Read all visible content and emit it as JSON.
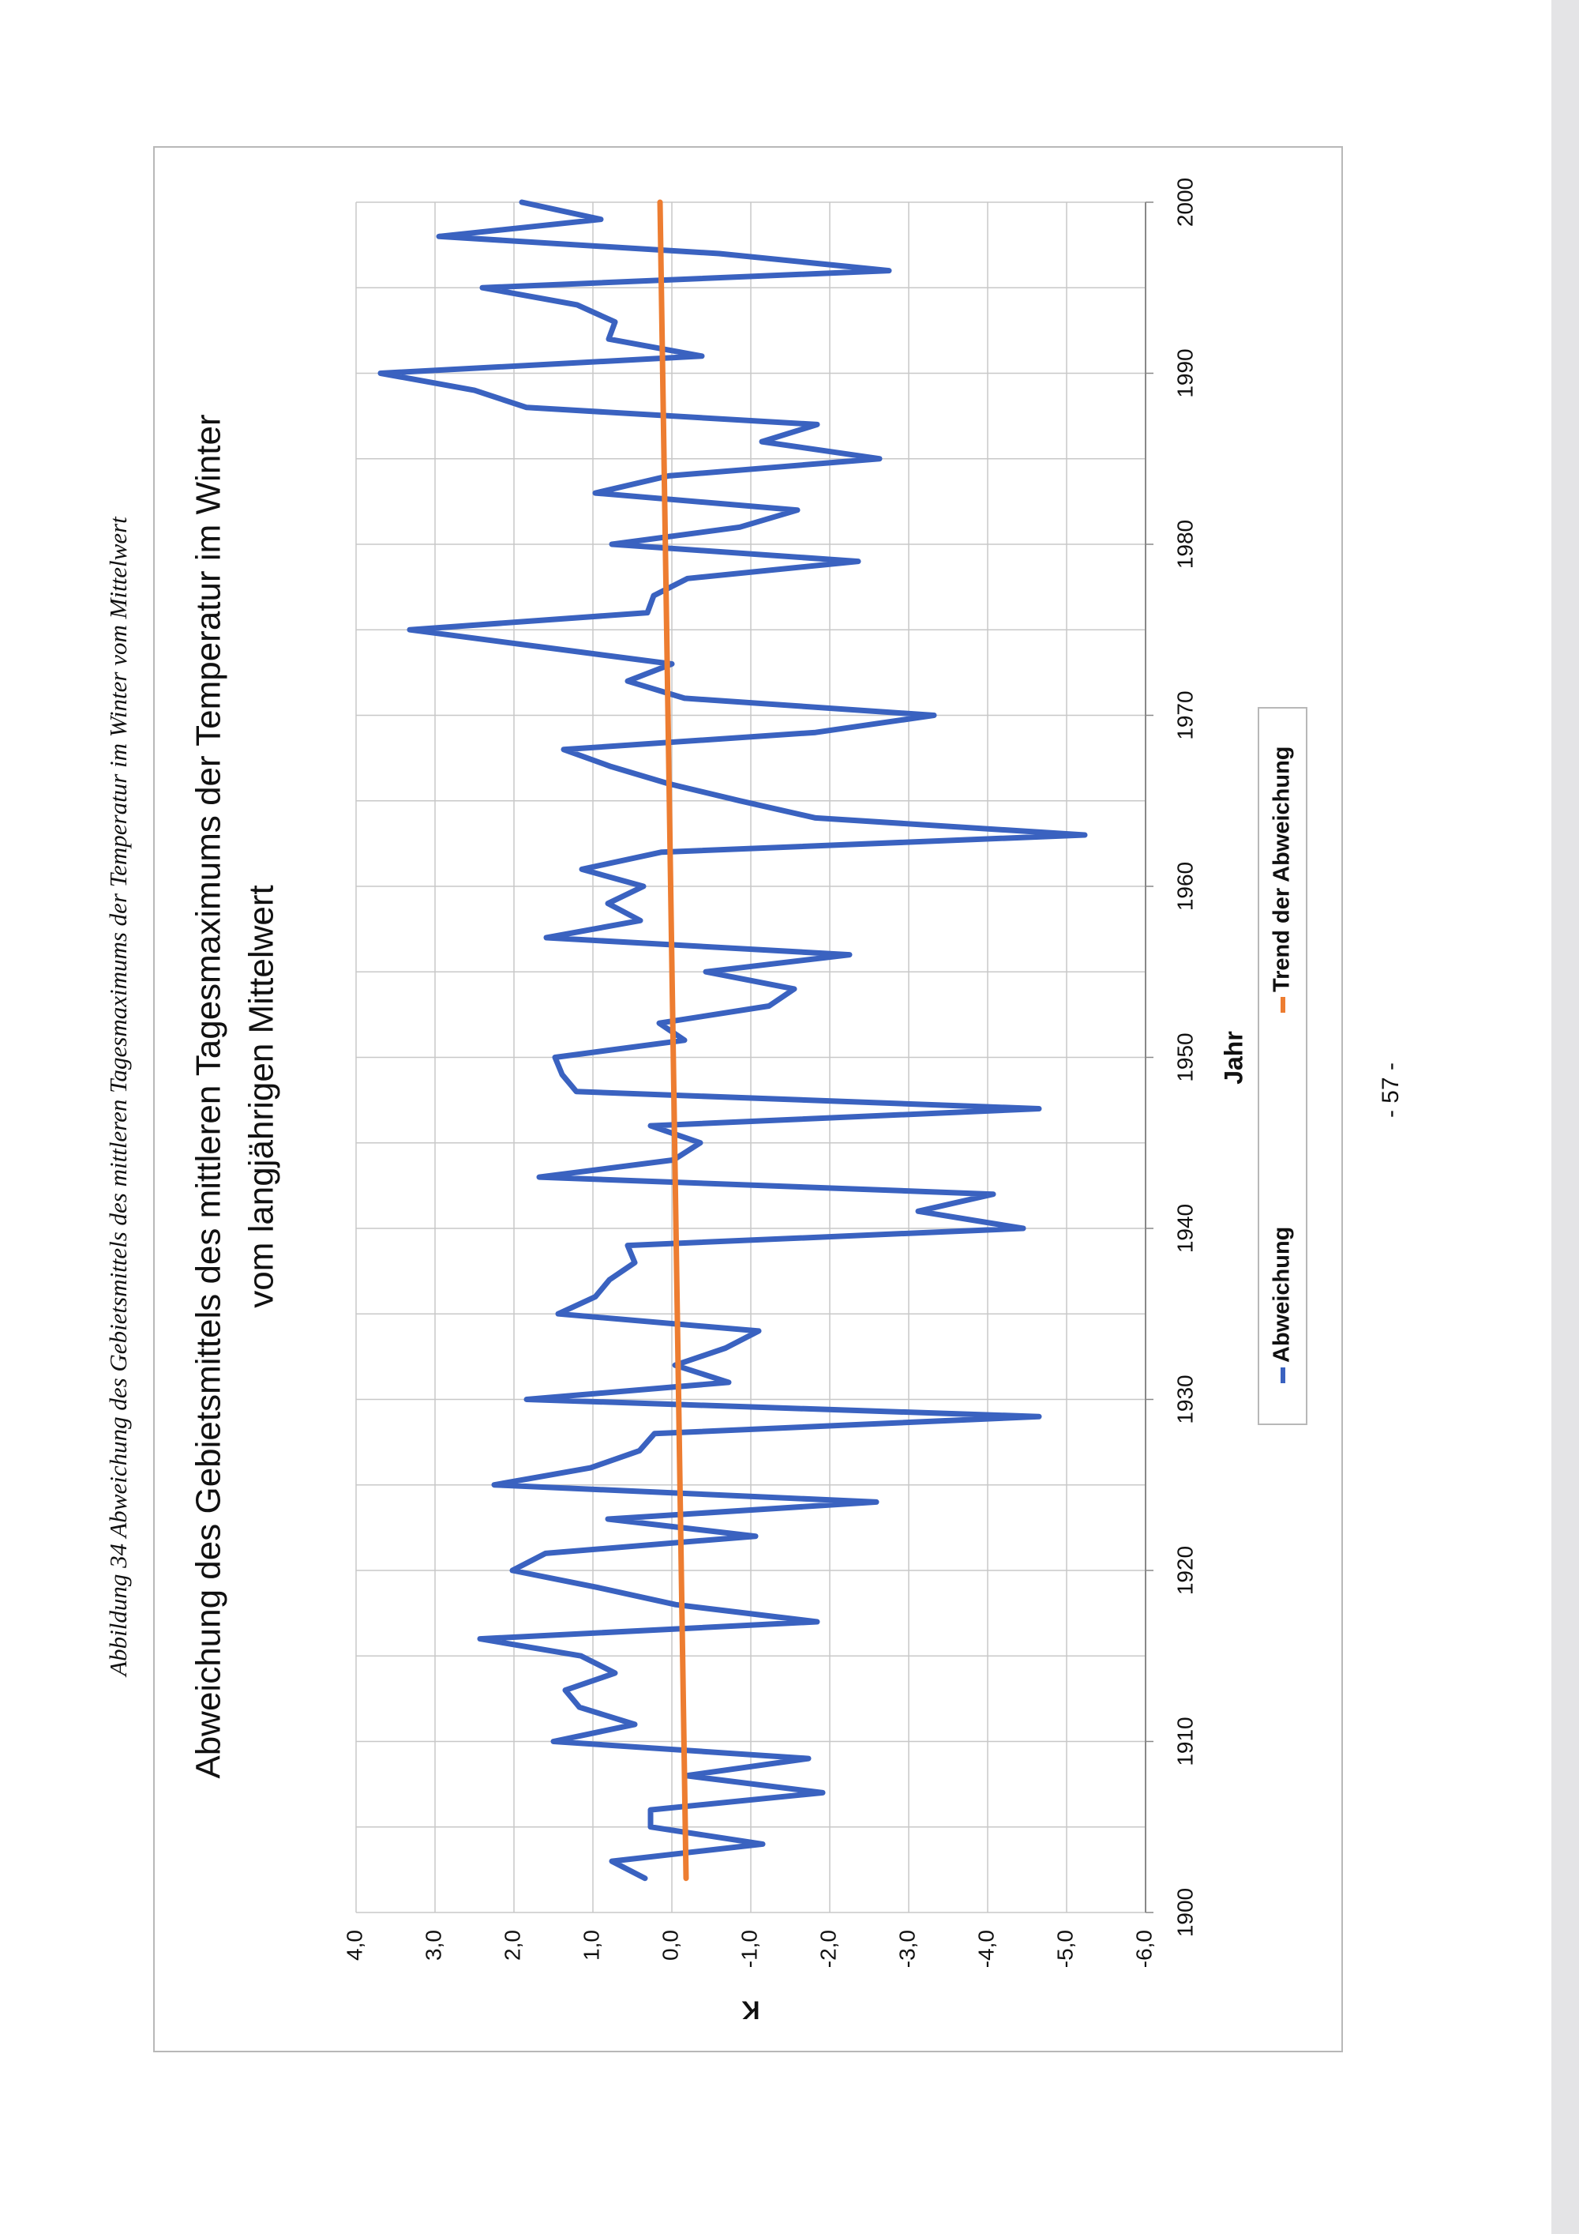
{
  "caption": "Abbildung 34 Abweichung des Gebietsmittels des mittleren Tagesmaximums der Temperatur im Winter vom Mittelwert",
  "page_number": "- 57 -",
  "chart_data": {
    "type": "line",
    "title": [
      "Abweichung des Gebietsmittels des mittleren Tagesmaximums der Temperatur im Winter",
      "vom langjährigen Mittelwert"
    ],
    "xlabel": "Jahr",
    "ylabel": "K",
    "xlim": [
      1900,
      2000
    ],
    "xticks": [
      1900,
      1910,
      1920,
      1930,
      1940,
      1950,
      1960,
      1970,
      1980,
      1990,
      2000
    ],
    "ylim": [
      -6,
      4
    ],
    "yticks": [
      {
        "value": 4,
        "label": "4,0"
      },
      {
        "value": 3,
        "label": "3,0"
      },
      {
        "value": 2,
        "label": "2,0"
      },
      {
        "value": 1,
        "label": "1,0"
      },
      {
        "value": 0,
        "label": "0,0"
      },
      {
        "value": -1,
        "label": "-1,0"
      },
      {
        "value": -2,
        "label": "-2,0"
      },
      {
        "value": -3,
        "label": "-3,0"
      },
      {
        "value": -4,
        "label": "-4,0"
      },
      {
        "value": -5,
        "label": "-5,0"
      },
      {
        "value": -6,
        "label": "-6,0"
      }
    ],
    "grid": true,
    "legend": "bottom",
    "series": [
      {
        "name": "Abweichung",
        "color": "#3a62c0",
        "x": [
          1902,
          1903,
          1904,
          1905,
          1906,
          1907,
          1908,
          1909,
          1910,
          1911,
          1912,
          1913,
          1914,
          1915,
          1916,
          1917,
          1918,
          1919,
          1920,
          1921,
          1922,
          1923,
          1924,
          1925,
          1926,
          1927,
          1928,
          1929,
          1930,
          1931,
          1932,
          1933,
          1934,
          1935,
          1936,
          1937,
          1938,
          1939,
          1940,
          1941,
          1942,
          1943,
          1944,
          1945,
          1946,
          1947,
          1948,
          1949,
          1950,
          1951,
          1952,
          1953,
          1954,
          1955,
          1956,
          1957,
          1958,
          1959,
          1960,
          1961,
          1962,
          1963,
          1964,
          1965,
          1966,
          1967,
          1968,
          1969,
          1970,
          1971,
          1972,
          1973,
          1974,
          1975,
          1976,
          1977,
          1978,
          1979,
          1980,
          1981,
          1982,
          1983,
          1984,
          1985,
          1986,
          1987,
          1988,
          1989,
          1990,
          1991,
          1992,
          1993,
          1994,
          1995,
          1996,
          1997,
          1998,
          1999,
          2000
        ],
        "values": [
          0.34,
          0.76,
          -1.15,
          0.27,
          0.27,
          -1.91,
          -0.18,
          -1.73,
          1.5,
          0.47,
          1.17,
          1.35,
          0.72,
          1.15,
          2.43,
          -1.84,
          -0.05,
          0.94,
          2.02,
          1.6,
          -1.06,
          0.81,
          -2.59,
          2.25,
          1.03,
          0.41,
          0.22,
          -4.65,
          1.84,
          -0.72,
          -0.04,
          -0.68,
          -1.1,
          1.44,
          0.97,
          0.79,
          0.47,
          0.56,
          -4.45,
          -3.12,
          -4.07,
          1.68,
          -0.02,
          -0.36,
          0.27,
          -4.65,
          1.21,
          1.39,
          1.48,
          -0.16,
          0.16,
          -1.23,
          -1.55,
          -0.43,
          -2.25,
          1.59,
          0.4,
          0.81,
          0.36,
          1.14,
          0.13,
          -5.23,
          -1.82,
          -0.86,
          0.04,
          0.77,
          1.37,
          -1.82,
          -3.32,
          -0.16,
          0.56,
          0.0,
          1.66,
          3.32,
          0.31,
          0.23,
          -0.2,
          -2.36,
          0.76,
          -0.86,
          -1.59,
          0.97,
          0.04,
          -2.63,
          -1.14,
          -1.84,
          1.84,
          2.5,
          3.69,
          -0.38,
          0.8,
          0.72,
          1.2,
          2.4,
          -2.75,
          -0.6,
          2.95,
          0.9,
          1.9
        ]
      },
      {
        "name": "Trend der Abweichung",
        "color": "#ed7d31",
        "x": [
          1902,
          2000
        ],
        "values": [
          -0.18,
          0.15
        ]
      }
    ]
  }
}
